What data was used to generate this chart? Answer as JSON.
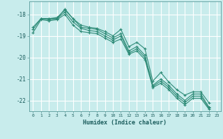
{
  "xlabel": "Humidex (Indice chaleur)",
  "ylabel": "",
  "background_color": "#c8ecec",
  "grid_color": "#ffffff",
  "line_color": "#2e8b77",
  "ylim": [
    -22.5,
    -17.4
  ],
  "xlim": [
    -0.5,
    23.5
  ],
  "yticks": [
    -22,
    -21,
    -20,
    -19,
    -18
  ],
  "xticks": [
    0,
    1,
    2,
    3,
    4,
    5,
    6,
    7,
    8,
    9,
    10,
    11,
    12,
    13,
    14,
    15,
    16,
    17,
    18,
    19,
    20,
    21,
    22,
    23
  ],
  "series": [
    [
      null,
      -18.2,
      -18.2,
      -18.2,
      -17.75,
      -18.2,
      -18.5,
      -18.6,
      -18.65,
      -18.8,
      -19.0,
      -18.7,
      -19.5,
      -19.3,
      -19.6,
      -21.1,
      -20.7,
      -21.15,
      -21.5,
      -21.75,
      -21.6,
      -21.6,
      -22.1,
      null
    ],
    [
      -18.6,
      -18.2,
      -18.2,
      -18.15,
      -17.8,
      -18.2,
      -18.6,
      -18.65,
      -18.7,
      -18.9,
      -19.1,
      -18.9,
      -19.7,
      -19.5,
      -19.9,
      -21.3,
      -21.0,
      -21.3,
      -21.7,
      -22.0,
      -21.7,
      -21.7,
      -22.3,
      null
    ],
    [
      -18.7,
      -18.2,
      -18.25,
      -18.2,
      -17.9,
      -18.35,
      -18.65,
      -18.75,
      -18.8,
      -19.0,
      -19.2,
      -19.0,
      -19.8,
      -19.6,
      -20.0,
      -21.35,
      -21.1,
      -21.4,
      -21.8,
      -22.1,
      -21.8,
      -21.8,
      -22.35,
      null
    ],
    [
      -18.85,
      -18.25,
      -18.3,
      -18.25,
      -18.0,
      -18.5,
      -18.8,
      -18.85,
      -18.9,
      -19.1,
      -19.3,
      -19.15,
      -19.85,
      -19.7,
      -20.1,
      -21.4,
      -21.2,
      -21.5,
      -21.9,
      -22.2,
      -21.9,
      -21.9,
      -22.4,
      null
    ]
  ]
}
